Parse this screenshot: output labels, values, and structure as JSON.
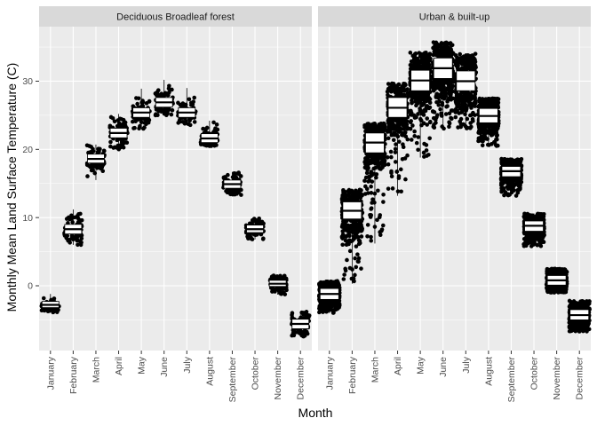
{
  "chart_data": {
    "type": "boxplot",
    "xlabel": "Month",
    "ylabel": "Monthly Mean Land Surface Temperature (C)",
    "ylim": [
      -9.5,
      38
    ],
    "yticks": [
      0,
      10,
      20,
      30
    ],
    "categories": [
      "January",
      "February",
      "March",
      "April",
      "May",
      "June",
      "July",
      "August",
      "September",
      "October",
      "November",
      "December"
    ],
    "panels": [
      {
        "name": "Deciduous Broadleaf forest",
        "boxes": [
          {
            "q1": -3.2,
            "median": -2.8,
            "q3": -2.3,
            "min": -3.9,
            "max": -1.2
          },
          {
            "q1": 7.6,
            "median": 8.3,
            "q3": 9.0,
            "min": 6.0,
            "max": 11.2
          },
          {
            "q1": 18.0,
            "median": 18.6,
            "q3": 19.3,
            "min": 15.5,
            "max": 20.7
          },
          {
            "q1": 21.7,
            "median": 22.4,
            "q3": 23.1,
            "min": 20.0,
            "max": 25.2
          },
          {
            "q1": 24.7,
            "median": 25.4,
            "q3": 26.1,
            "min": 23.0,
            "max": 28.9
          },
          {
            "q1": 26.2,
            "median": 26.9,
            "q3": 27.6,
            "min": 25.0,
            "max": 30.2
          },
          {
            "q1": 24.7,
            "median": 25.4,
            "q3": 26.1,
            "min": 23.5,
            "max": 29.0
          },
          {
            "q1": 21.0,
            "median": 21.6,
            "q3": 22.3,
            "min": 20.5,
            "max": 24.2
          },
          {
            "q1": 14.3,
            "median": 14.9,
            "q3": 15.5,
            "min": 13.3,
            "max": 16.7
          },
          {
            "q1": 7.8,
            "median": 8.3,
            "q3": 8.9,
            "min": 6.8,
            "max": 9.9
          },
          {
            "q1": -0.1,
            "median": 0.3,
            "q3": 0.8,
            "min": -1.3,
            "max": 1.6
          },
          {
            "q1": -6.3,
            "median": -5.6,
            "q3": -4.9,
            "min": -7.5,
            "max": -3.8
          }
        ]
      },
      {
        "name": "Urban & built-up",
        "boxes": [
          {
            "q1": -2.0,
            "median": -1.2,
            "q3": -0.4,
            "min": -4.0,
            "max": 0.7
          },
          {
            "q1": 9.8,
            "median": 11.0,
            "q3": 12.3,
            "min": 0.3,
            "max": 14.1
          },
          {
            "q1": 19.5,
            "median": 21.0,
            "q3": 22.4,
            "min": 6.2,
            "max": 23.8
          },
          {
            "q1": 24.7,
            "median": 26.1,
            "q3": 27.6,
            "min": 13.2,
            "max": 29.7
          },
          {
            "q1": 28.6,
            "median": 30.1,
            "q3": 31.6,
            "min": 18.8,
            "max": 34.2
          },
          {
            "q1": 30.4,
            "median": 31.9,
            "q3": 33.4,
            "min": 23.0,
            "max": 35.7
          },
          {
            "q1": 28.6,
            "median": 30.0,
            "q3": 31.5,
            "min": 23.0,
            "max": 34.1
          },
          {
            "q1": 23.9,
            "median": 24.9,
            "q3": 26.0,
            "min": 20.5,
            "max": 27.5
          },
          {
            "q1": 16.0,
            "median": 16.8,
            "q3": 17.5,
            "min": 13.2,
            "max": 18.6
          },
          {
            "q1": 8.0,
            "median": 8.8,
            "q3": 9.5,
            "min": 5.8,
            "max": 10.6
          },
          {
            "q1": 0.1,
            "median": 0.8,
            "q3": 1.5,
            "min": -1.0,
            "max": 2.5
          },
          {
            "q1": -5.0,
            "median": -4.3,
            "q3": -3.5,
            "min": -6.7,
            "max": -2.2
          }
        ]
      }
    ],
    "jitter_points": true
  },
  "colors": {
    "panel_bg": "#ebebeb",
    "grid_major": "#ffffff",
    "strip_bg": "#d9d9d9",
    "points": "#000000",
    "box_fill": "#ffffff",
    "box_line": "#000000"
  }
}
